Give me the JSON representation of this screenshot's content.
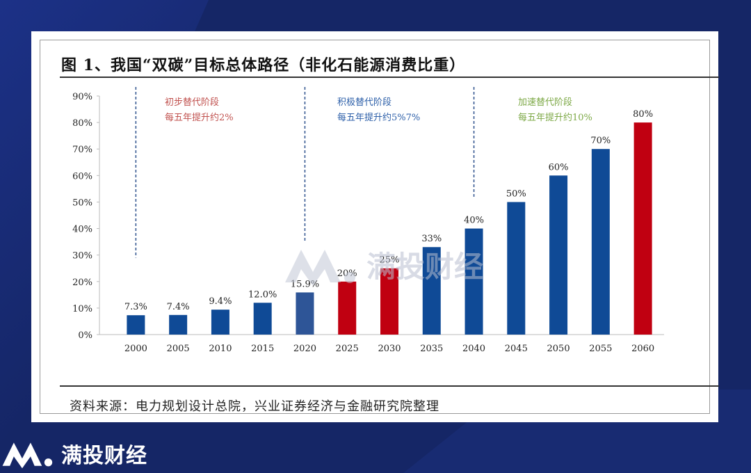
{
  "figure": {
    "title": "图 1、我国“双碳”目标总体路径（非化石能源消费比重）",
    "source": "资料来源：电力规划设计总院，兴业证券经济与金融研究院整理"
  },
  "brand": {
    "name": "满投财经",
    "watermark_text": "满投财经"
  },
  "colors": {
    "blue": "#0f4a96",
    "blue_2020": "#2e5597",
    "red": "#c00011",
    "stage1": "#c0504d",
    "stage2": "#2b5ea8",
    "stage3": "#7ca845",
    "background": "#152666"
  },
  "chart_data": {
    "type": "bar",
    "categories": [
      "2000",
      "2005",
      "2010",
      "2015",
      "2020",
      "2025",
      "2030",
      "2035",
      "2040",
      "2045",
      "2050",
      "2055",
      "2060"
    ],
    "values": [
      7.3,
      7.4,
      9.4,
      12.0,
      15.9,
      20,
      25,
      33,
      40,
      50,
      60,
      70,
      80
    ],
    "data_labels": [
      "7.3%",
      "7.4%",
      "9.4%",
      "12.0%",
      "15.9%",
      "20%",
      "25%",
      "33%",
      "40%",
      "50%",
      "60%",
      "70%",
      "80%"
    ],
    "bar_colors": [
      "blue",
      "blue",
      "blue",
      "blue",
      "blue_2020",
      "red",
      "red",
      "blue",
      "blue",
      "blue",
      "blue",
      "blue",
      "red"
    ],
    "ylim": [
      0,
      90
    ],
    "yticks": [
      "0%",
      "10%",
      "20%",
      "30%",
      "40%",
      "50%",
      "60%",
      "70%",
      "80%",
      "90%"
    ],
    "grid": false,
    "stages": [
      {
        "name": "初步替代阶段",
        "desc": "每五年提升约2%",
        "color": "stage1"
      },
      {
        "name": "积极替代阶段",
        "desc": "每五年提升约5%7%",
        "color": "stage2"
      },
      {
        "name": "加速替代阶段",
        "desc": "每五年提升约10%",
        "color": "stage3"
      }
    ]
  }
}
